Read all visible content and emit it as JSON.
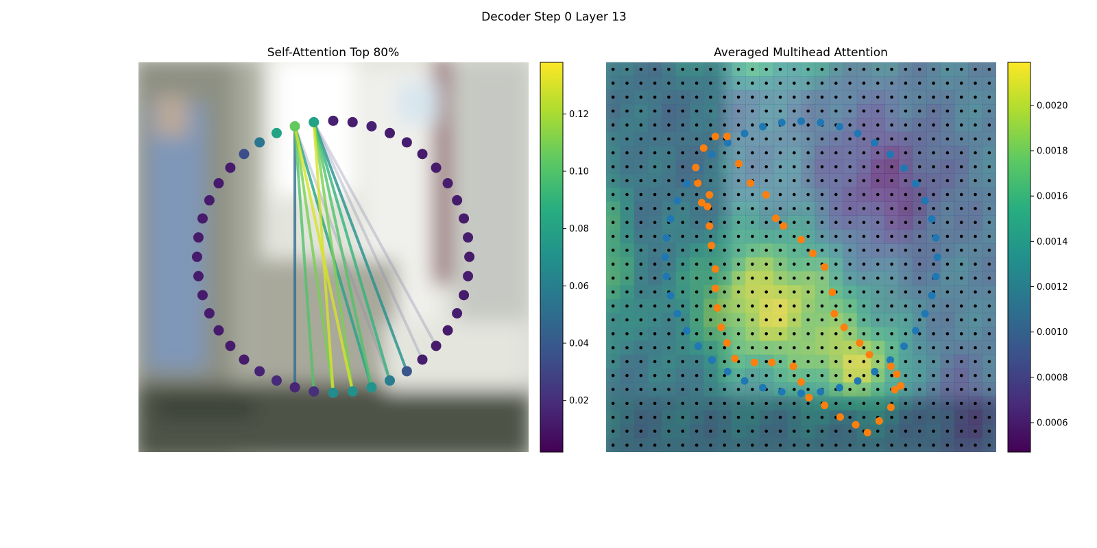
{
  "figure": {
    "title": "Decoder Step 0 Layer 13"
  },
  "chart_data": [
    {
      "type": "scatter",
      "title": "Self-Attention Top 80%",
      "xlabel": "",
      "ylabel": "",
      "axes_visible": false,
      "background": "blurred photograph",
      "description_of_marks": "44 points arranged on a ring, colored by attention weight; lines connect the two top points to points at the bottom",
      "point_angles_deg": [
        -90,
        -81.82,
        -73.64,
        -65.45,
        -57.27,
        -49.09,
        -40.91,
        -32.73,
        -24.55,
        -16.36,
        -8.18,
        0,
        8.18,
        16.36,
        24.55,
        32.73,
        40.91,
        49.09,
        57.27,
        65.45,
        73.64,
        81.82,
        90,
        98.18,
        106.36,
        114.55,
        122.73,
        130.91,
        139.09,
        147.27,
        155.45,
        163.64,
        171.82,
        180,
        188.18,
        196.36,
        204.55,
        212.73,
        220.91,
        229.09,
        237.27,
        245.45,
        253.64,
        261.82
      ],
      "point_values": [
        0.014,
        0.013,
        0.014,
        0.012,
        0.013,
        0.012,
        0.012,
        0.013,
        0.012,
        0.012,
        0.013,
        0.012,
        0.013,
        0.012,
        0.013,
        0.012,
        0.012,
        0.013,
        0.038,
        0.06,
        0.072,
        0.07,
        0.068,
        0.02,
        0.016,
        0.018,
        0.015,
        0.012,
        0.012,
        0.012,
        0.012,
        0.012,
        0.012,
        0.012,
        0.012,
        0.012,
        0.012,
        0.012,
        0.012,
        0.034,
        0.055,
        0.08,
        0.105,
        0.08
      ],
      "connections": [
        {
          "from": 43,
          "to": 22,
          "weight": 0.13
        },
        {
          "from": 43,
          "to": 21,
          "weight": 0.11
        },
        {
          "from": 43,
          "to": 20,
          "weight": 0.1
        },
        {
          "from": 43,
          "to": 19,
          "weight": 0.09
        },
        {
          "from": 43,
          "to": 18,
          "weight": 0.07
        },
        {
          "from": 42,
          "to": 21,
          "weight": 0.13
        },
        {
          "from": 42,
          "to": 22,
          "weight": 0.11
        },
        {
          "from": 42,
          "to": 23,
          "weight": 0.1
        },
        {
          "from": 42,
          "to": 20,
          "weight": 0.08
        },
        {
          "from": 42,
          "to": 24,
          "weight": 0.05
        },
        {
          "from": 43,
          "to": 17,
          "weight": 0.03
        },
        {
          "from": 42,
          "to": 19,
          "weight": 0.03
        },
        {
          "from": 43,
          "to": 16,
          "weight": 0.02
        }
      ],
      "colorbar": {
        "colormap": "viridis",
        "ticks": [
          "0.02",
          "0.04",
          "0.06",
          "0.08",
          "0.10",
          "0.12"
        ],
        "tick_values": [
          0.02,
          0.04,
          0.06,
          0.08,
          0.1,
          0.12
        ],
        "range": [
          0.002,
          0.138
        ]
      }
    },
    {
      "type": "heatmap",
      "title": "Averaged Multihead Attention",
      "xlabel": "",
      "ylabel": "",
      "axes_visible": false,
      "grid_size": [
        28,
        28
      ],
      "heatmap_overlay": "28x28 averaged attention heatmap blended over blurred photograph, black dot at every grid cell",
      "series": [
        {
          "name": "ring points",
          "color": "#1f77b4",
          "count": 44
        },
        {
          "name": "query points",
          "color": "#ff7f0e",
          "count": 44
        }
      ],
      "colorbar": {
        "colormap": "viridis",
        "ticks": [
          "0.0006",
          "0.0008",
          "0.0010",
          "0.0012",
          "0.0014",
          "0.0016",
          "0.0018",
          "0.0020"
        ],
        "tick_values": [
          0.0006,
          0.0008,
          0.001,
          0.0012,
          0.0014,
          0.0016,
          0.0018,
          0.002
        ],
        "range": [
          0.00047,
          0.00219
        ]
      }
    }
  ]
}
